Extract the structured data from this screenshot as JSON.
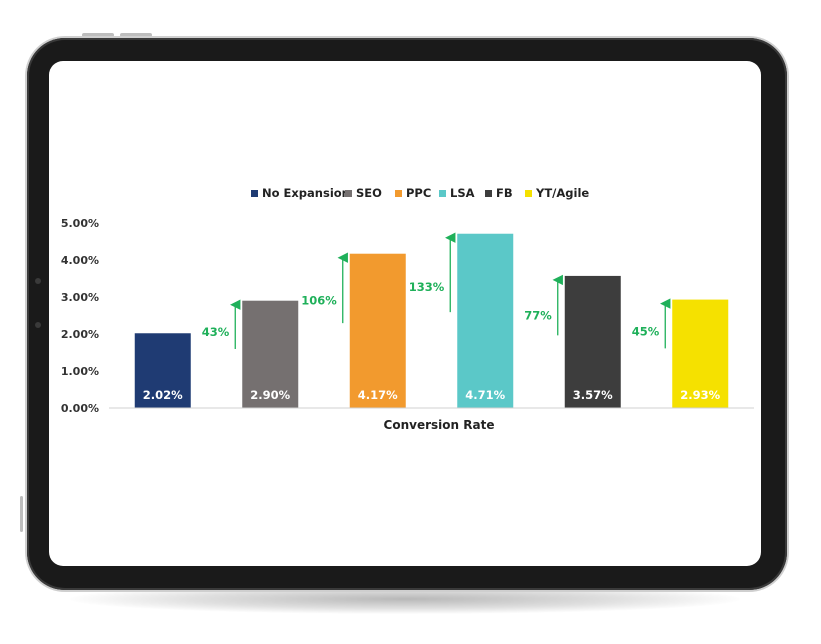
{
  "chart_data": {
    "type": "bar",
    "categories": [
      "No Expansion",
      "SEO",
      "PPC",
      "LSA",
      "FB",
      "YT/Agile"
    ],
    "values": [
      2.02,
      2.9,
      4.17,
      4.71,
      3.57,
      2.93
    ],
    "value_labels": [
      "2.02%",
      "2.90%",
      "4.17%",
      "4.71%",
      "3.57%",
      "2.93%"
    ],
    "increase_labels": [
      "",
      "43%",
      "106%",
      "133%",
      "77%",
      "45%"
    ],
    "colors": [
      "#1f3b73",
      "#757070",
      "#f29a2e",
      "#5bc8c8",
      "#3d3d3d",
      "#f5e100"
    ],
    "legend": [
      "No Expansion",
      "SEO",
      "PPC",
      "LSA",
      "FB",
      "YT/Agile"
    ],
    "legend_position": "top",
    "xlabel": "Conversion Rate",
    "ylabel": "",
    "ylim": [
      0,
      5
    ],
    "yticks": [
      "0.00%",
      "1.00%",
      "2.00%",
      "3.00%",
      "4.00%",
      "5.00%"
    ],
    "grid": false,
    "arrow_color": "#1fb05a"
  }
}
